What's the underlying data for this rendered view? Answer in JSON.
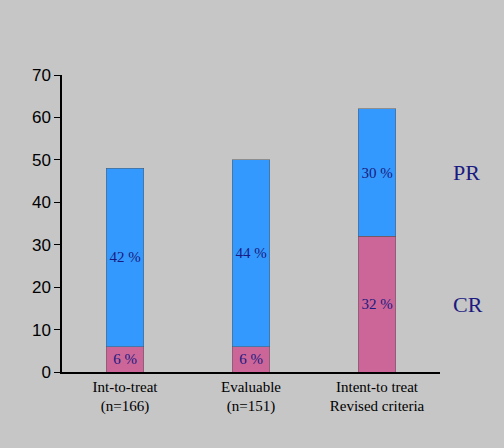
{
  "chart_data": {
    "type": "bar",
    "stacked": true,
    "data_labels": true,
    "grid": false,
    "categories": [
      "Int-to-treat\n(n=166)",
      "Evaluable\n(n=151)",
      "Intent-to treat\nRevised criteria"
    ],
    "series": [
      {
        "name": "CR",
        "color": "#cc6699",
        "values": [
          6,
          6,
          32
        ],
        "value_labels": [
          "6 %",
          "6 %",
          "32 %"
        ]
      },
      {
        "name": "PR",
        "color": "#3399ff",
        "values": [
          42,
          44,
          30
        ],
        "value_labels": [
          "42 %",
          "44 %",
          "30 %"
        ]
      }
    ],
    "ylim": [
      0,
      70
    ],
    "yticks": [
      0,
      10,
      20,
      30,
      40,
      50,
      60,
      70
    ]
  }
}
